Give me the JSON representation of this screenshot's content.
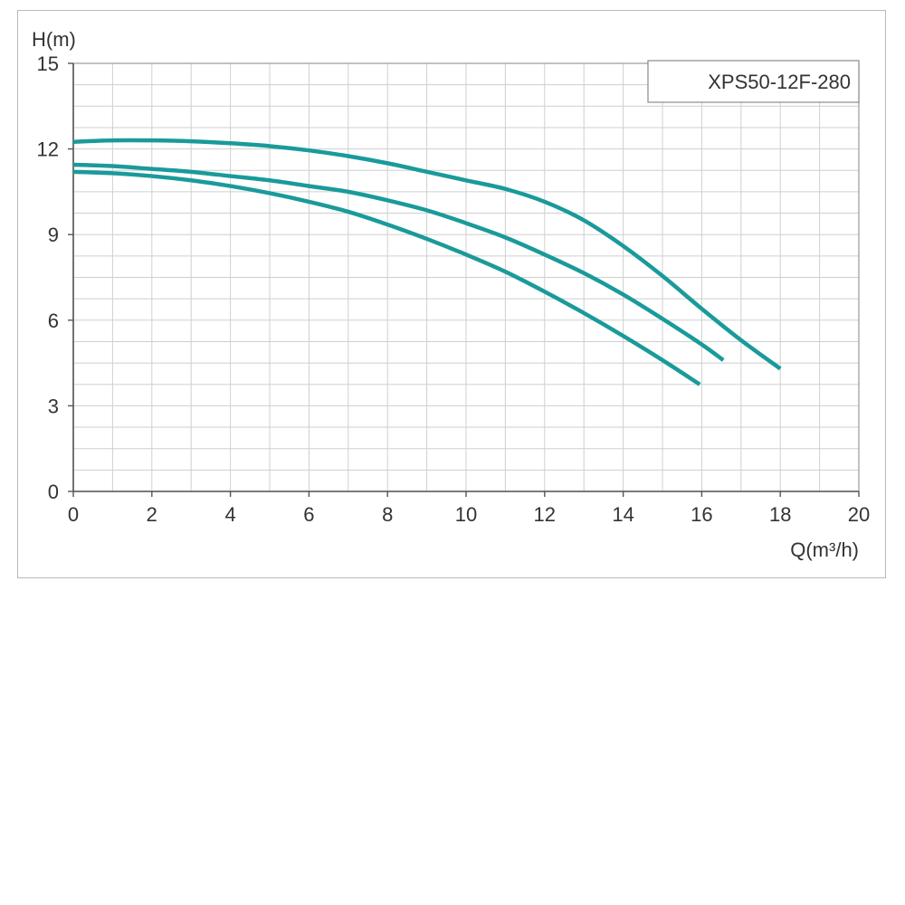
{
  "chart_data": {
    "type": "line",
    "title": "",
    "xlabel": "Q(m³/h)",
    "ylabel": "H(m)",
    "xlim": [
      0,
      20
    ],
    "ylim": [
      0,
      15
    ],
    "x_ticks": [
      "0",
      "2",
      "4",
      "6",
      "8",
      "10",
      "12",
      "14",
      "16",
      "18",
      "20"
    ],
    "y_ticks": [
      "0",
      "3",
      "6",
      "9",
      "12",
      "15"
    ],
    "grid": true,
    "legend_label": "XPS50-12F-280",
    "legend_position": "top-right",
    "line_color": "#1a9a9a",
    "series": [
      {
        "x": [
          0,
          1,
          2,
          3,
          4,
          5,
          6,
          7,
          8,
          9,
          10,
          11,
          12,
          13,
          14,
          15,
          16,
          17,
          18
        ],
        "y": [
          12.25,
          12.3,
          12.3,
          12.27,
          12.2,
          12.1,
          11.95,
          11.75,
          11.5,
          11.2,
          10.9,
          10.6,
          10.15,
          9.5,
          8.6,
          7.55,
          6.4,
          5.3,
          4.3
        ]
      },
      {
        "x": [
          0,
          1,
          2,
          3,
          4,
          5,
          6,
          7,
          8,
          9,
          10,
          11,
          12,
          13,
          14,
          15,
          16,
          16.55
        ],
        "y": [
          11.45,
          11.4,
          11.3,
          11.2,
          11.05,
          10.9,
          10.7,
          10.5,
          10.2,
          9.85,
          9.4,
          8.9,
          8.3,
          7.65,
          6.9,
          6.05,
          5.15,
          4.6
        ]
      },
      {
        "x": [
          0,
          1,
          2,
          3,
          4,
          5,
          6,
          7,
          8,
          9,
          10,
          11,
          12,
          13,
          14,
          15,
          15.95
        ],
        "y": [
          11.2,
          11.15,
          11.05,
          10.9,
          10.7,
          10.45,
          10.15,
          9.8,
          9.35,
          8.85,
          8.3,
          7.7,
          7.0,
          6.25,
          5.45,
          4.6,
          3.75
        ]
      }
    ]
  }
}
